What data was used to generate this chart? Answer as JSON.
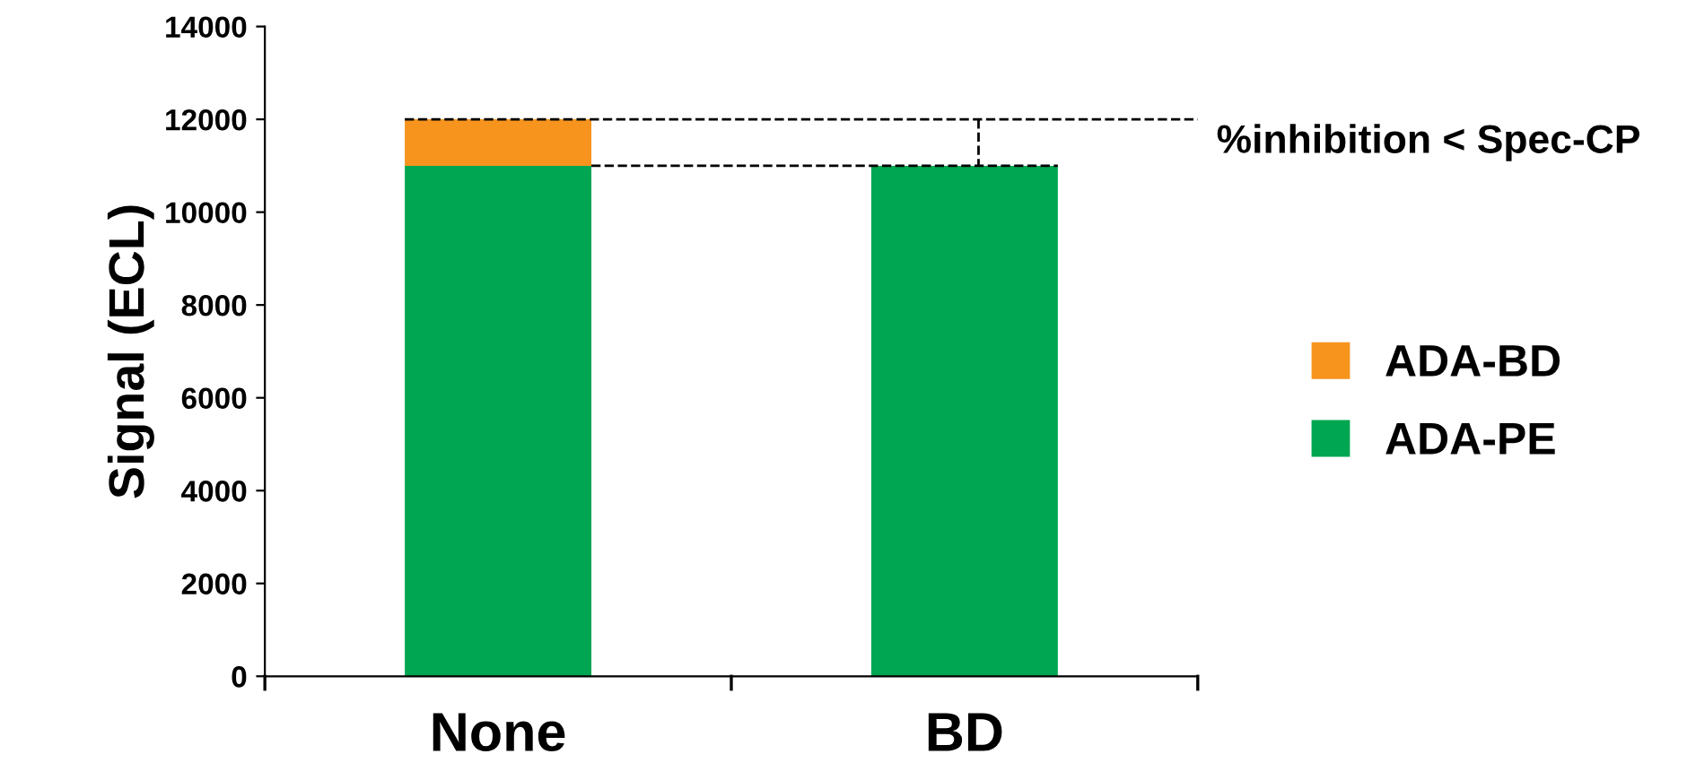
{
  "chart_data": {
    "type": "bar",
    "stacked": true,
    "ylabel": "Signal (ECL)",
    "categories": [
      "None",
      "BD"
    ],
    "series": [
      {
        "name": "ADA-PE",
        "color": "#00a651",
        "values": [
          11000,
          11000
        ]
      },
      {
        "name": "ADA-BD",
        "color": "#f7941d",
        "values": [
          1000,
          0
        ]
      }
    ],
    "ylim": [
      0,
      14000
    ],
    "yticks": [
      0,
      2000,
      4000,
      6000,
      8000,
      10000,
      12000,
      14000
    ],
    "ref_lines": [
      {
        "axis": "y",
        "value": 12000,
        "color": "#000000",
        "line_style": "dashed"
      },
      {
        "axis": "y",
        "value": 11000,
        "color": "#000000",
        "line_style": "dashed"
      }
    ],
    "annotations": [
      "%inhibition < Spec-CP"
    ],
    "legend": "right",
    "grid": false
  }
}
